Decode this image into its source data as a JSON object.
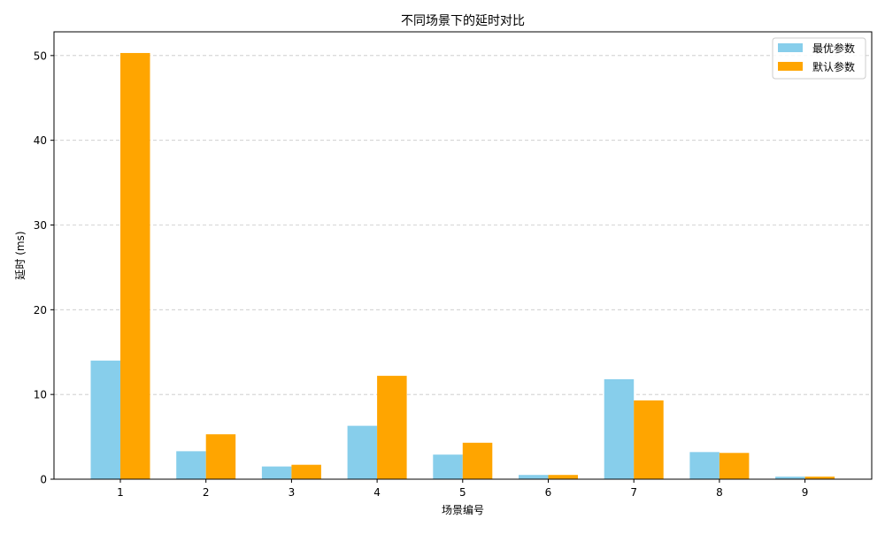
{
  "chart_data": {
    "type": "bar",
    "title": "不同场景下的延时对比",
    "xlabel": "场景编号",
    "ylabel": "延时 (ms)",
    "categories": [
      "1",
      "2",
      "3",
      "4",
      "5",
      "6",
      "7",
      "8",
      "9"
    ],
    "series": [
      {
        "name": "最优参数",
        "color": "#87CEEB",
        "values": [
          14.0,
          3.3,
          1.5,
          6.3,
          2.9,
          0.5,
          11.8,
          3.2,
          0.3
        ]
      },
      {
        "name": "默认参数",
        "color": "#FFA500",
        "values": [
          50.3,
          5.3,
          1.7,
          12.2,
          4.3,
          0.5,
          9.3,
          3.1,
          0.3
        ]
      }
    ],
    "ylim": [
      0,
      52.8
    ],
    "yticks": [
      0,
      10,
      20,
      30,
      40,
      50
    ],
    "grid": "horizontal dashed",
    "legend_position": "top-right"
  }
}
